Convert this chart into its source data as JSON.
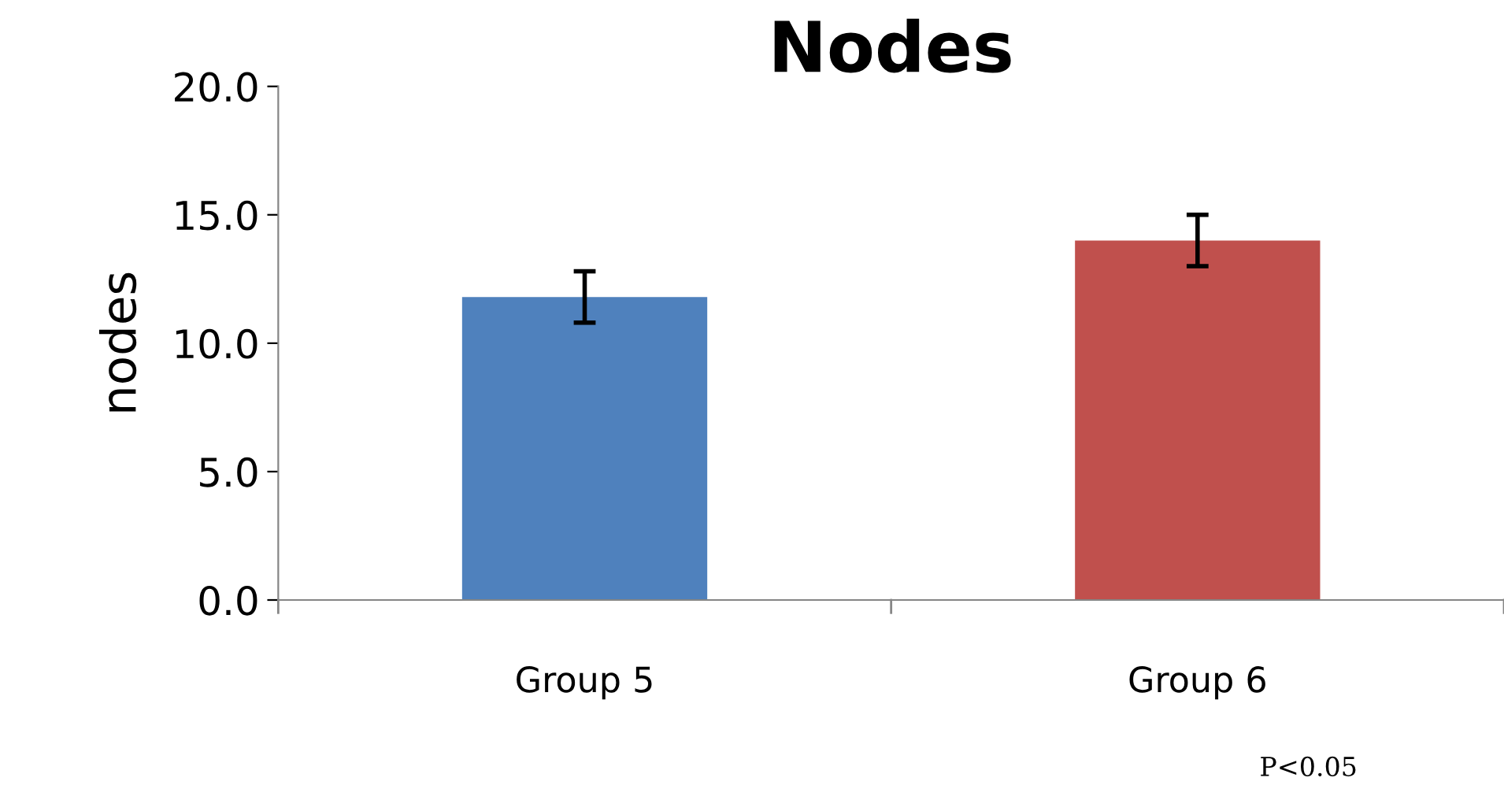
{
  "chart_data": {
    "type": "bar",
    "title": "Nodes",
    "ylabel": "nodes",
    "categories": [
      "Group 5",
      "Group 6"
    ],
    "values": [
      11.8,
      14.0
    ],
    "colors": [
      "#4f81bd",
      "#c0504d"
    ],
    "errors": [
      1.0,
      1.0
    ],
    "ylim": [
      0,
      20
    ],
    "yticks": [
      {
        "value": 0,
        "label": "0.0"
      },
      {
        "value": 5,
        "label": "5.0"
      },
      {
        "value": 10,
        "label": "10.0"
      },
      {
        "value": 15,
        "label": "15.0"
      },
      {
        "value": 20,
        "label": "20.0"
      }
    ],
    "grid": false,
    "legend": false,
    "annotations": [
      "P<0.05"
    ]
  }
}
